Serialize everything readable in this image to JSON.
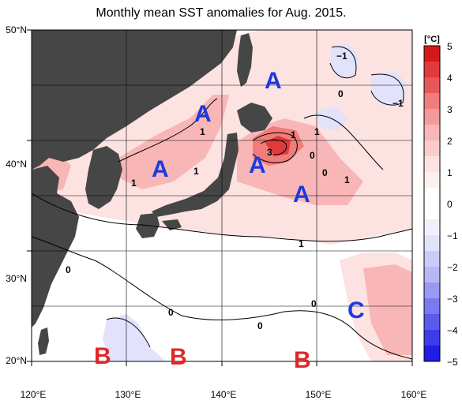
{
  "title": "Monthly mean SST anomalies for Aug. 2015.",
  "colors": {
    "land": "#464646",
    "zero_band": "#ffffff",
    "pos_1": "#fde2e2",
    "pos_2": "#f8b6b6",
    "pos_3": "#f07c7c",
    "pos_4": "#e03a3a",
    "neg_1": "#e2e2fc",
    "neg_2": "#b7b7f5",
    "neg_3": "#7a7af0",
    "neg_4": "#2a2ae8",
    "label_A": "#1a3ae0",
    "label_B": "#e02828",
    "label_C": "#1a3ae0"
  },
  "axes": {
    "lat_labels": [
      "50°N",
      "40°N",
      "30°N",
      "20°N"
    ],
    "lon_labels": [
      "120°E",
      "130°E",
      "140°E",
      "150°E",
      "160°E"
    ],
    "lon_range": [
      120,
      160
    ],
    "lat_range": [
      20,
      50
    ],
    "grid_lon": [
      130,
      140,
      150
    ],
    "grid_lat": [
      25,
      30,
      35,
      40,
      45
    ]
  },
  "colorbar": {
    "unit": "[°C]",
    "ticks": [
      "5",
      "4",
      "3",
      "2",
      "1",
      "0",
      "−1",
      "−2",
      "−3",
      "−4",
      "−5"
    ]
  },
  "region_labels": [
    {
      "text": "A",
      "type": "A"
    },
    {
      "text": "A",
      "type": "A"
    },
    {
      "text": "A",
      "type": "A"
    },
    {
      "text": "A",
      "type": "A"
    },
    {
      "text": "A",
      "type": "A"
    },
    {
      "text": "B",
      "type": "B"
    },
    {
      "text": "B",
      "type": "B"
    },
    {
      "text": "B",
      "type": "B"
    },
    {
      "text": "C",
      "type": "C"
    }
  ],
  "contour_labels": [
    "1",
    "1",
    "3",
    "1",
    "0",
    "1",
    "0",
    "1",
    "1",
    "−1",
    "0",
    "−1",
    "0",
    "0",
    "0",
    "0",
    "1"
  ]
}
